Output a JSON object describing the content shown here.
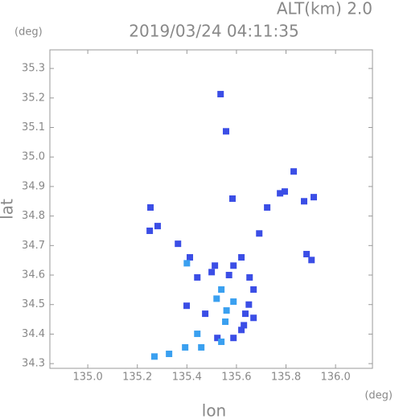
{
  "chart_data": {
    "type": "scatter",
    "title": "2019/03/24 04:11:35",
    "altitude_label": "ALT(km) 2.0",
    "y_unit": "(deg)",
    "x_unit": "(deg)",
    "x_label": "lon",
    "y_label": "lat",
    "xlim": [
      134.847,
      136.149
    ],
    "ylim": [
      34.284,
      35.363
    ],
    "xticks": [
      {
        "value": 135,
        "label": "135.0"
      },
      {
        "value": 135.2,
        "label": "135.2"
      },
      {
        "value": 135.4,
        "label": "135.4"
      },
      {
        "value": 135.6,
        "label": "135.6"
      },
      {
        "value": 135.8,
        "label": "135.8"
      },
      {
        "value": 136,
        "label": "136.0"
      }
    ],
    "yticks": [
      34.3,
      34.4,
      34.5,
      34.6,
      34.7,
      34.8,
      34.9,
      {
        "value": 35,
        "label": "35.0"
      },
      35.1,
      35.2,
      35.3
    ],
    "series": [
      {
        "color": "#3b4ee6",
        "x": [
          135.536,
          135.558,
          135.584,
          135.795,
          135.776,
          135.831,
          135.912,
          135.873,
          135.724,
          135.692,
          135.253,
          135.282,
          135.25,
          135.364,
          135.412,
          135.883,
          135.903,
          135.513,
          135.588,
          135.62,
          135.442,
          135.636,
          135.669,
          135.653,
          135.474,
          135.399,
          135.588,
          135.669,
          135.62,
          135.523,
          135.5,
          135.57,
          135.65,
          135.63
        ],
        "values": [
          35.213,
          35.087,
          34.859,
          34.883,
          34.877,
          34.951,
          34.864,
          34.85,
          34.829,
          34.741,
          34.829,
          34.766,
          34.75,
          34.706,
          34.66,
          34.671,
          34.651,
          34.632,
          34.632,
          34.66,
          34.592,
          34.469,
          34.551,
          34.592,
          34.469,
          34.496,
          34.387,
          34.455,
          34.414,
          34.387,
          34.61,
          34.6,
          34.5,
          34.43
        ]
      },
      {
        "color": "#3aa0f0",
        "x": [
          135.539,
          135.588,
          135.555,
          135.442,
          135.393,
          135.328,
          135.269,
          135.458,
          135.539,
          135.56,
          135.52,
          135.4
        ],
        "values": [
          34.551,
          34.51,
          34.442,
          34.401,
          34.355,
          34.333,
          34.324,
          34.355,
          34.374,
          34.48,
          34.52,
          34.64
        ]
      }
    ]
  }
}
